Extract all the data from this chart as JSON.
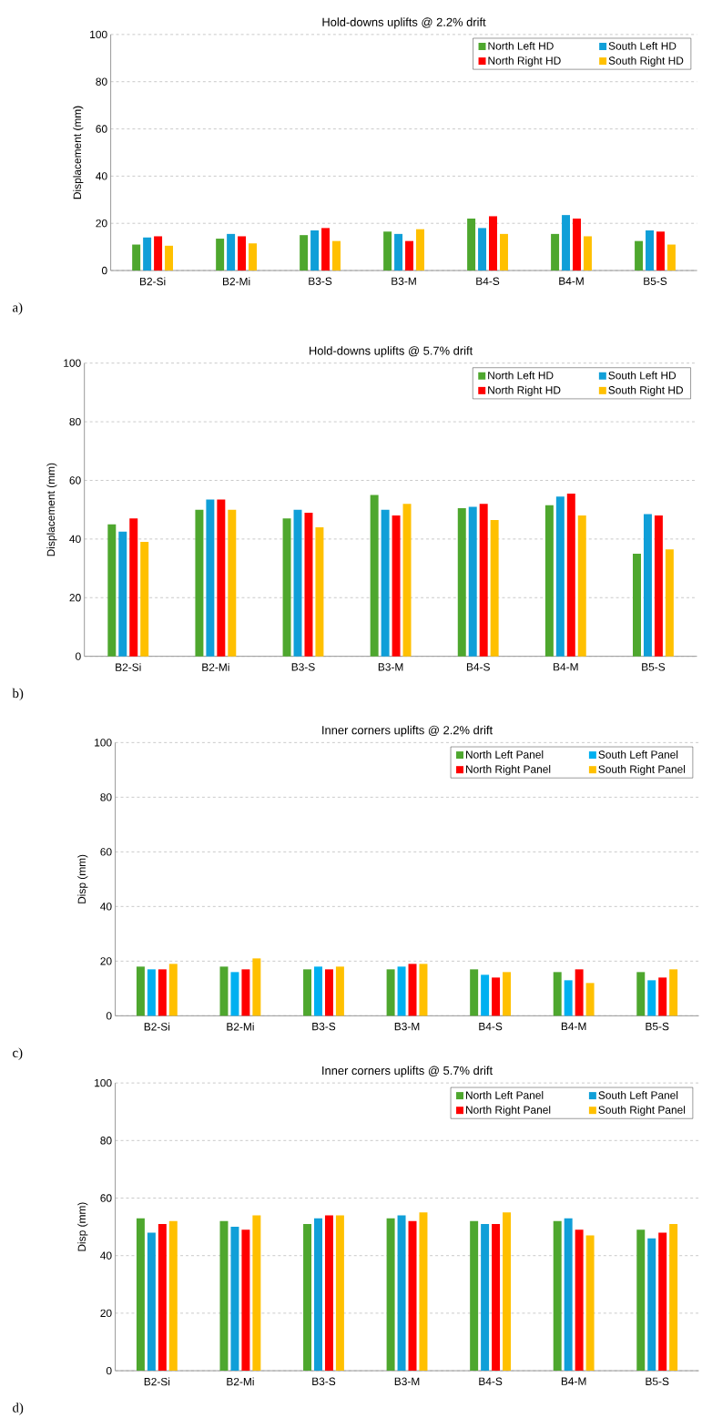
{
  "chart_data": [
    {
      "type": "bar",
      "title": "Hold-downs uplifts @ 2.2% drift",
      "ylabel": "Displacement (mm)",
      "categories": [
        "B2-Si",
        "B2-Mi",
        "B3-S",
        "B3-M",
        "B4-S",
        "B4-M",
        "B5-S"
      ],
      "ylim": [
        0,
        100
      ],
      "yticks": [
        0,
        20,
        40,
        60,
        80,
        100
      ],
      "grid": "y",
      "legend": "top right",
      "annotations": [
        "a)"
      ],
      "series": [
        {
          "name": "North Left HD",
          "color": "#4ea72e",
          "values": [
            11,
            13.5,
            15,
            16.5,
            22,
            15.5,
            12.5
          ]
        },
        {
          "name": "South Left HD",
          "color": "#109fd8",
          "values": [
            14,
            15.5,
            17,
            15.5,
            18,
            23.5,
            17
          ]
        },
        {
          "name": "North Right HD",
          "color": "#ff0000",
          "values": [
            14.5,
            14.5,
            18,
            12.5,
            23,
            22,
            16.5
          ]
        },
        {
          "name": "South Right HD",
          "color": "#ffc000",
          "values": [
            10.5,
            11.5,
            12.5,
            17.5,
            15.5,
            14.5,
            11
          ]
        }
      ]
    },
    {
      "type": "bar",
      "title": "Hold-downs uplifts @ 5.7% drift",
      "ylabel": "Displacement (mm)",
      "categories": [
        "B2-Si",
        "B2-Mi",
        "B3-S",
        "B3-M",
        "B4-S",
        "B4-M",
        "B5-S"
      ],
      "ylim": [
        0,
        100
      ],
      "yticks": [
        0,
        20,
        40,
        60,
        80,
        100
      ],
      "grid": "y",
      "legend": "top right",
      "annotations": [
        "b)"
      ],
      "series": [
        {
          "name": "North Left HD",
          "color": "#4ea72e",
          "values": [
            45,
            50,
            47,
            55,
            50.5,
            51.5,
            35
          ]
        },
        {
          "name": "South Left HD",
          "color": "#109fd8",
          "values": [
            42.5,
            53.5,
            50,
            50,
            51,
            54.5,
            48.5
          ]
        },
        {
          "name": "North Right HD",
          "color": "#ff0000",
          "values": [
            47,
            53.5,
            49,
            48,
            52,
            55.5,
            48
          ]
        },
        {
          "name": "South Right HD",
          "color": "#ffc000",
          "values": [
            39,
            50,
            44,
            52,
            46.5,
            48,
            36.5
          ]
        }
      ]
    },
    {
      "type": "bar",
      "title": "Inner corners uplifts @ 2.2% drift",
      "ylabel": "Disp (mm)",
      "categories": [
        "B2-Si",
        "B2-Mi",
        "B3-S",
        "B3-M",
        "B4-S",
        "B4-M",
        "B5-S"
      ],
      "ylim": [
        0,
        100
      ],
      "yticks": [
        0,
        20,
        40,
        60,
        80,
        100
      ],
      "grid": "y",
      "legend": "top right",
      "annotations": [
        "c)"
      ],
      "series": [
        {
          "name": "North Left Panel",
          "color": "#4ea72e",
          "values": [
            18,
            18,
            17,
            17,
            17,
            16,
            16
          ]
        },
        {
          "name": "South Left Panel",
          "color": "#00b0f0",
          "values": [
            17,
            16,
            18,
            18,
            15,
            13,
            13
          ]
        },
        {
          "name": "North Right Panel",
          "color": "#ff0000",
          "values": [
            17,
            17,
            17,
            19,
            14,
            17,
            14
          ]
        },
        {
          "name": "South Right Panel",
          "color": "#ffc000",
          "values": [
            19,
            21,
            18,
            19,
            16,
            12,
            17
          ]
        }
      ]
    },
    {
      "type": "bar",
      "title": "Inner corners uplifts @ 5.7% drift",
      "ylabel": "Disp (mm)",
      "categories": [
        "B2-Si",
        "B2-Mi",
        "B3-S",
        "B3-M",
        "B4-S",
        "B4-M",
        "B5-S"
      ],
      "ylim": [
        0,
        100
      ],
      "yticks": [
        0,
        20,
        40,
        60,
        80,
        100
      ],
      "grid": "y",
      "legend": "top right",
      "annotations": [
        "d)"
      ],
      "series": [
        {
          "name": "North Left Panel",
          "color": "#4ea72e",
          "values": [
            53,
            52,
            51,
            53,
            52,
            52,
            49
          ]
        },
        {
          "name": "South Left Panel",
          "color": "#109fd8",
          "values": [
            48,
            50,
            53,
            54,
            51,
            53,
            46
          ]
        },
        {
          "name": "North Right Panel",
          "color": "#ff0000",
          "values": [
            51,
            49,
            54,
            52,
            51,
            49,
            48
          ]
        },
        {
          "name": "South Right Panel",
          "color": "#ffc000",
          "values": [
            52,
            54,
            54,
            55,
            55,
            47,
            51
          ]
        }
      ]
    }
  ]
}
